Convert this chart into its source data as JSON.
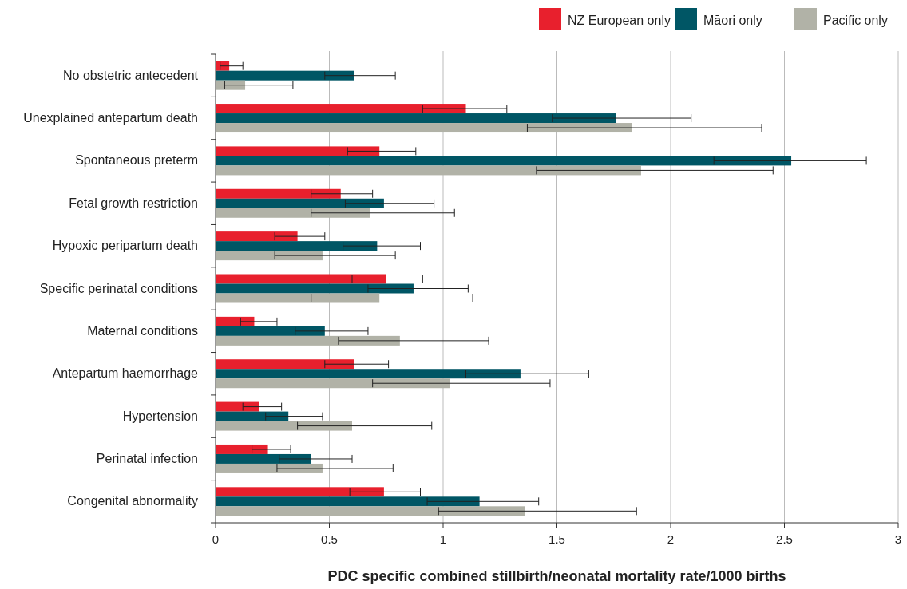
{
  "chart_data": {
    "type": "bar",
    "orientation": "horizontal",
    "xlabel": "PDC specific combined stillbirth/neonatal mortality rate/1000 births",
    "categories": [
      "No obstetric antecedent",
      "Unexplained antepartum death",
      "Spontaneous preterm",
      "Fetal growth restriction",
      "Hypoxic peripartum death",
      "Specific perinatal conditions",
      "Maternal conditions",
      "Antepartum haemorrhage",
      "Hypertension",
      "Perinatal infection",
      "Congenital abnormality"
    ],
    "series": [
      {
        "name": "NZ European only",
        "color": "#e8202d",
        "values": [
          0.06,
          1.1,
          0.72,
          0.55,
          0.36,
          0.75,
          0.17,
          0.61,
          0.19,
          0.23,
          0.74
        ],
        "errors": [
          [
            0.02,
            0.12
          ],
          [
            0.91,
            1.28
          ],
          [
            0.58,
            0.88
          ],
          [
            0.42,
            0.69
          ],
          [
            0.26,
            0.48
          ],
          [
            0.6,
            0.91
          ],
          [
            0.11,
            0.27
          ],
          [
            0.48,
            0.76
          ],
          [
            0.12,
            0.29
          ],
          [
            0.16,
            0.33
          ],
          [
            0.59,
            0.9
          ]
        ]
      },
      {
        "name": "Māori only",
        "color": "#005665",
        "values": [
          0.61,
          1.76,
          2.53,
          0.74,
          0.71,
          0.87,
          0.48,
          1.34,
          0.32,
          0.42,
          1.16
        ],
        "errors": [
          [
            0.48,
            0.79
          ],
          [
            1.48,
            2.09
          ],
          [
            2.19,
            2.86
          ],
          [
            0.57,
            0.96
          ],
          [
            0.56,
            0.9
          ],
          [
            0.67,
            1.11
          ],
          [
            0.35,
            0.67
          ],
          [
            1.1,
            1.64
          ],
          [
            0.22,
            0.47
          ],
          [
            0.28,
            0.6
          ],
          [
            0.93,
            1.42
          ]
        ]
      },
      {
        "name": "Pacific only",
        "color": "#b1b2a7",
        "values": [
          0.13,
          1.83,
          1.87,
          0.68,
          0.47,
          0.72,
          0.81,
          1.03,
          0.6,
          0.47,
          1.36
        ],
        "errors": [
          [
            0.04,
            0.34
          ],
          [
            1.37,
            2.4
          ],
          [
            1.41,
            2.45
          ],
          [
            0.42,
            1.05
          ],
          [
            0.26,
            0.79
          ],
          [
            0.42,
            1.13
          ],
          [
            0.54,
            1.2
          ],
          [
            0.69,
            1.47
          ],
          [
            0.36,
            0.95
          ],
          [
            0.27,
            0.78
          ],
          [
            0.98,
            1.85
          ]
        ]
      }
    ],
    "xlim": [
      0,
      3
    ],
    "xticks": [
      0,
      0.5,
      1,
      1.5,
      2,
      2.5,
      3
    ],
    "grid": "x",
    "legend": "top right"
  }
}
